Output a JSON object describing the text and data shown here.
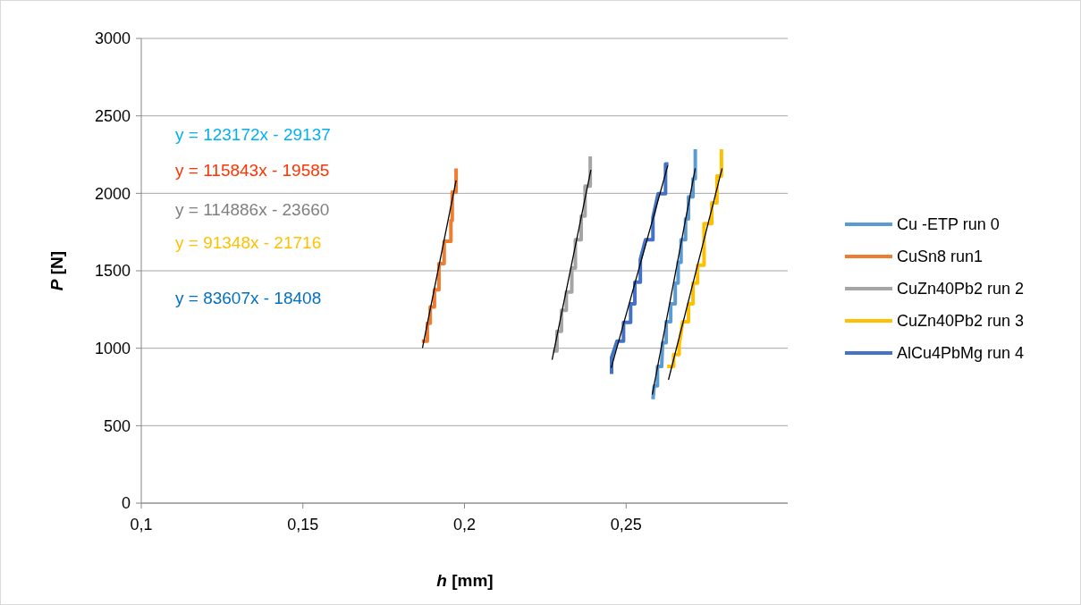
{
  "chart_data": {
    "type": "line",
    "xlabel": "h [mm]",
    "ylabel": "P [N]",
    "xlim": [
      0.1,
      0.3
    ],
    "xticks": [
      {
        "value": 0.1,
        "label": "0,1"
      },
      {
        "value": 0.15,
        "label": "0,15"
      },
      {
        "value": 0.2,
        "label": "0,2"
      },
      {
        "value": 0.25,
        "label": "0,25"
      }
    ],
    "ylim": [
      0,
      3000
    ],
    "yticks": [
      0,
      500,
      1000,
      1500,
      2000,
      2500,
      3000
    ],
    "grid": "y",
    "legend": "right",
    "marker": "none",
    "line_style": "solid",
    "annotations": [
      "y = 123172x - 29137",
      "y = 115843x - 19585",
      "y = 114886x - 23660",
      "y = 91348x - 21716",
      "y = 83607x - 18408"
    ],
    "series": [
      {
        "name": "Cu -ETP run 0",
        "color": "#5b9bd5",
        "x": [
          0.2583,
          0.2587,
          0.2597,
          0.2597,
          0.261,
          0.2613,
          0.2624,
          0.2624,
          0.2638,
          0.2638,
          0.2652,
          0.2652,
          0.2661,
          0.2661,
          0.267,
          0.267,
          0.2684,
          0.2684,
          0.2693,
          0.2693,
          0.2707,
          0.2707,
          0.2714,
          0.2714
        ],
        "values": [
          671,
          757,
          757,
          882,
          882,
          1036,
          1036,
          1171,
          1171,
          1286,
          1286,
          1420,
          1420,
          1555,
          1555,
          1700,
          1700,
          1834,
          1834,
          1978,
          1978,
          2094,
          2094,
          2285
        ]
      },
      {
        "name": "CuSn8 run1",
        "color": "#ed7d31",
        "x": [
          0.1868,
          0.1885,
          0.1885,
          0.1894,
          0.1894,
          0.1907,
          0.1907,
          0.1921,
          0.1921,
          0.1937,
          0.1937,
          0.1958,
          0.1958,
          0.1962,
          0.1962,
          0.1974,
          0.1974
        ],
        "values": [
          1046,
          1046,
          1161,
          1161,
          1267,
          1267,
          1378,
          1378,
          1546,
          1546,
          1690,
          1690,
          1824,
          1824,
          2007,
          2007,
          2161
        ]
      },
      {
        "name": "CuZn40Pb2 run 2",
        "color": "#a5a5a5",
        "x": [
          0.2274,
          0.2286,
          0.2286,
          0.23,
          0.23,
          0.2315,
          0.2315,
          0.2332,
          0.2332,
          0.2343,
          0.2343,
          0.2361,
          0.2361,
          0.2373,
          0.2373,
          0.2389,
          0.2389
        ],
        "values": [
          982,
          982,
          1109,
          1109,
          1244,
          1244,
          1363,
          1363,
          1517,
          1517,
          1700,
          1700,
          1853,
          1853,
          2046,
          2046,
          2238
        ]
      },
      {
        "name": "CuZn40Pb2 run 3",
        "color": "#ffc000",
        "x": [
          0.2627,
          0.2647,
          0.2647,
          0.2664,
          0.2664,
          0.2675,
          0.2693,
          0.2693,
          0.2707,
          0.2707,
          0.2721,
          0.2721,
          0.2741,
          0.2741,
          0.2765,
          0.2765,
          0.2781,
          0.2781,
          0.2795,
          0.2795
        ],
        "values": [
          882,
          882,
          959,
          959,
          1017,
          1171,
          1171,
          1286,
          1286,
          1420,
          1420,
          1536,
          1536,
          1805,
          1805,
          1939,
          1939,
          2112,
          2112,
          2285
        ]
      },
      {
        "name": "AlCu4PbMg run 4",
        "color": "#4472c4",
        "x": [
          0.2455,
          0.2455,
          0.2472,
          0.2492,
          0.2492,
          0.2514,
          0.2514,
          0.2527,
          0.2527,
          0.2544,
          0.2544,
          0.256,
          0.2583,
          0.2583,
          0.2599,
          0.2622,
          0.2622,
          0.2631
        ],
        "values": [
          834,
          940,
          1046,
          1046,
          1167,
          1167,
          1286,
          1286,
          1426,
          1426,
          1574,
          1700,
          1700,
          1844,
          1997,
          1997,
          2190,
          2190
        ]
      },
      {
        "color": "#000000",
        "x": [
          0.2581,
          0.2714
        ],
        "values": [
          700,
          2161
        ]
      },
      {
        "color": "#000000",
        "x": [
          0.187,
          0.1974
        ],
        "values": [
          1002,
          2084
        ]
      },
      {
        "color": "#000000",
        "x": [
          0.2271,
          0.2391
        ],
        "values": [
          925,
          2151
        ]
      },
      {
        "color": "#000000",
        "x": [
          0.2631,
          0.2797
        ],
        "values": [
          796,
          2161
        ]
      },
      {
        "color": "#000000",
        "x": [
          0.2454,
          0.2629
        ],
        "values": [
          873,
          2180
        ]
      }
    ]
  }
}
